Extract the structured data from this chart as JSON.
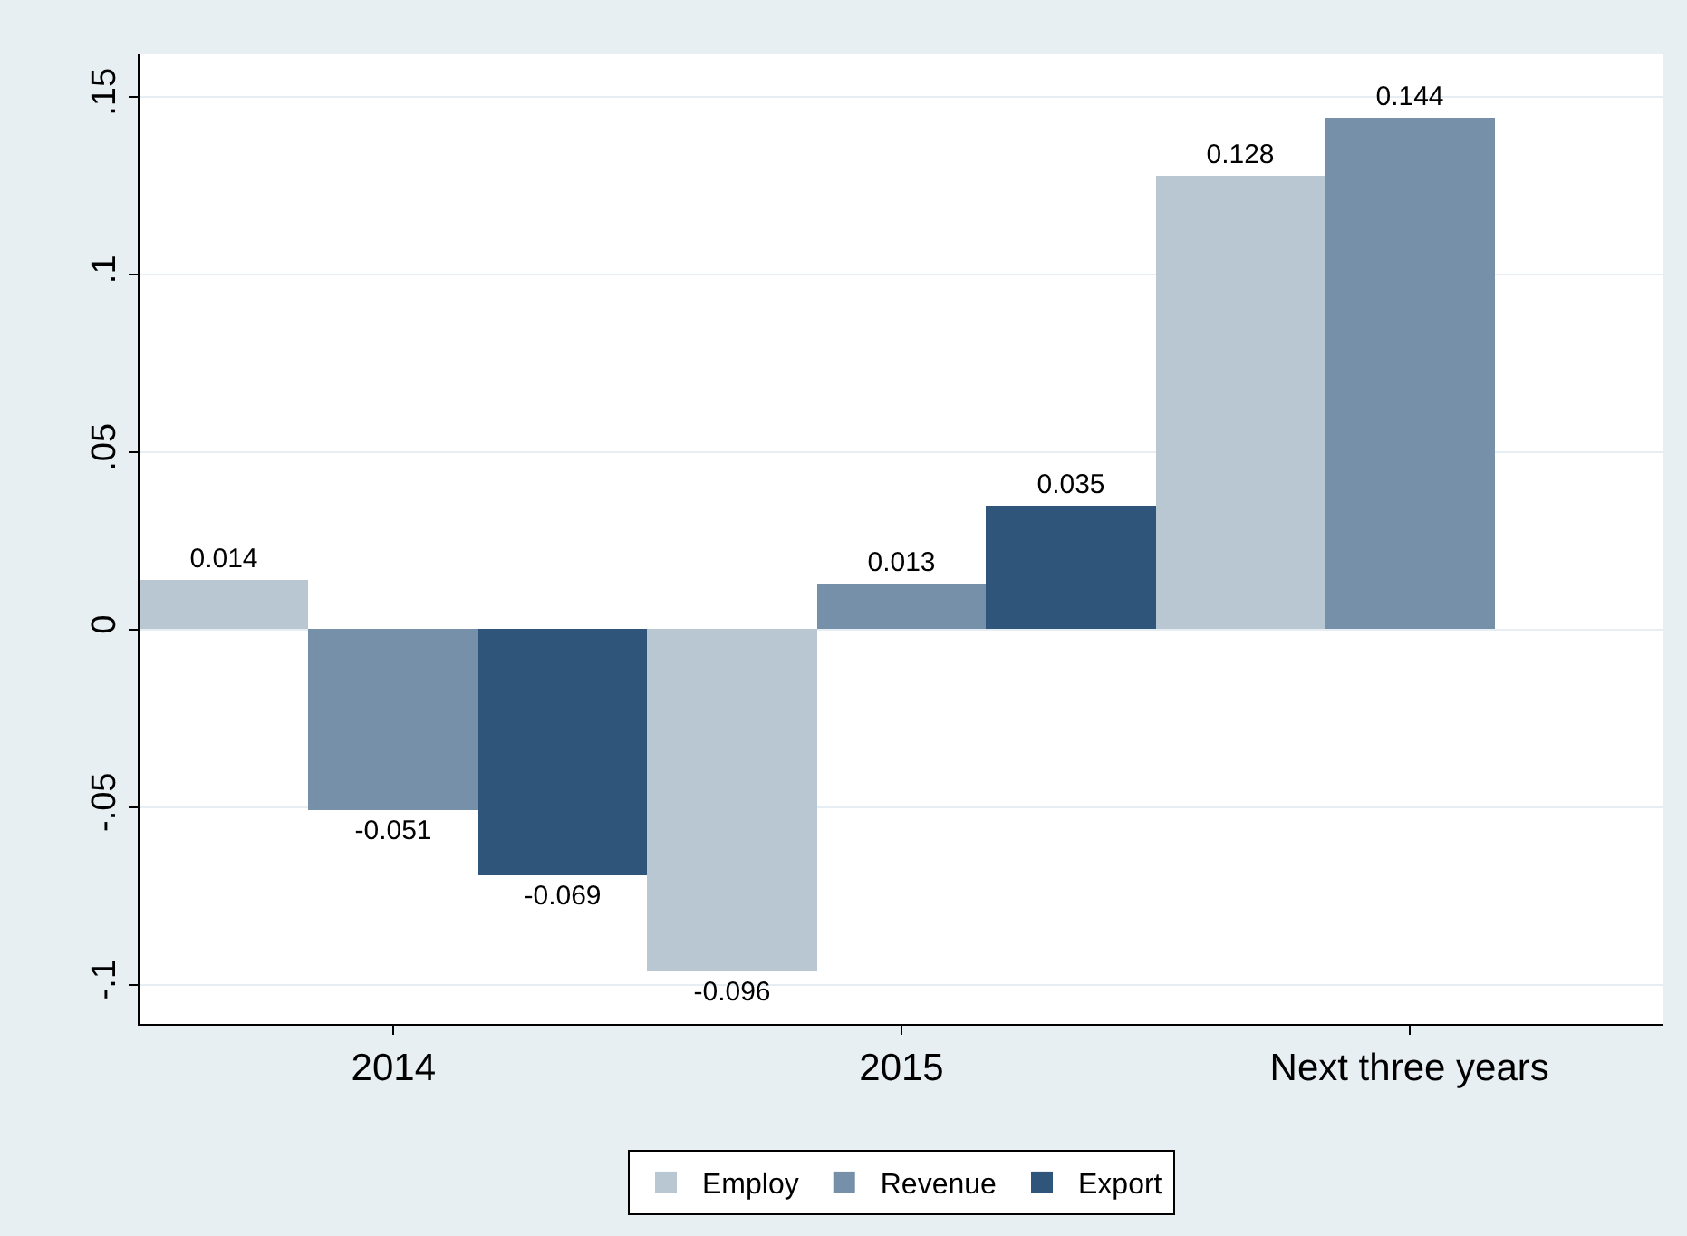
{
  "chart_data": {
    "type": "bar",
    "categories": [
      "2014",
      "2015",
      "Next three years"
    ],
    "series": [
      {
        "name": "Employ",
        "color": "#b9c7d3",
        "values": [
          0.014,
          -0.096,
          0.128
        ]
      },
      {
        "name": "Revenue",
        "color": "#7590a8",
        "values": [
          -0.051,
          0.013,
          0.144
        ]
      },
      {
        "name": "Export",
        "color": "#30557a",
        "values": [
          -0.069,
          0.035,
          null
        ]
      }
    ],
    "ylim": [
      -0.111,
      0.162
    ],
    "yticks": [
      {
        "value": -0.1,
        "label": "-.1"
      },
      {
        "value": -0.05,
        "label": "-.05"
      },
      {
        "value": 0,
        "label": "0"
      },
      {
        "value": 0.05,
        "label": ".05"
      },
      {
        "value": 0.1,
        "label": ".1"
      },
      {
        "value": 0.15,
        "label": ".15"
      }
    ],
    "grid": "y",
    "legend": "bottom",
    "data_labels": true
  }
}
